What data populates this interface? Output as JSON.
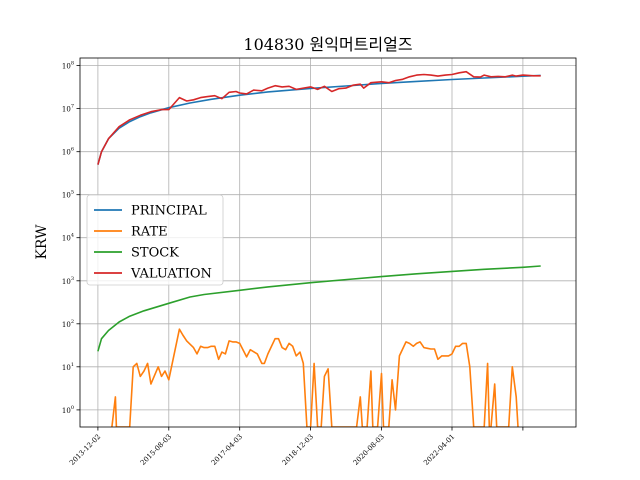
{
  "chart_data": {
    "type": "line",
    "title": "104830 원익머트리얼즈",
    "xlabel": "",
    "ylabel": "KRW",
    "yscale": "log",
    "ylim": [
      0.4,
      150000000
    ],
    "xlim": [
      "2013-07-01",
      "2025-03-01"
    ],
    "grid": true,
    "legend": {
      "position": "center-left"
    },
    "x_ticks": [
      {
        "date": "2013-12-02",
        "label": "2013-12-02"
      },
      {
        "date": "2015-08-03",
        "label": "2015-08-03"
      },
      {
        "date": "2017-04-03",
        "label": "2017-04-03"
      },
      {
        "date": "2018-12-03",
        "label": "2018-12-03"
      },
      {
        "date": "2020-08-03",
        "label": "2020-08-03"
      },
      {
        "date": "2022-04-01",
        "label": "2022-04-01"
      },
      {
        "date": "2023-12-01",
        "label": ""
      }
    ],
    "y_ticks": [
      {
        "value": 1,
        "base": "10",
        "exp": "0"
      },
      {
        "value": 10,
        "base": "10",
        "exp": "1"
      },
      {
        "value": 100,
        "base": "10",
        "exp": "2"
      },
      {
        "value": 1000,
        "base": "10",
        "exp": "3"
      },
      {
        "value": 10000,
        "base": "10",
        "exp": "4"
      },
      {
        "value": 100000,
        "base": "10",
        "exp": "5"
      },
      {
        "value": 1000000,
        "base": "10",
        "exp": "6"
      },
      {
        "value": 10000000,
        "base": "10",
        "exp": "7"
      },
      {
        "value": 100000000,
        "base": "10",
        "exp": "8"
      }
    ],
    "series": [
      {
        "name": "PRINCIPAL",
        "color": "#1f77b4",
        "points": [
          [
            "2013-12-02",
            500000
          ],
          [
            "2014-01-02",
            1000000
          ],
          [
            "2014-03-03",
            2000000
          ],
          [
            "2014-06-02",
            3500000
          ],
          [
            "2014-09-01",
            5000000
          ],
          [
            "2014-12-01",
            6500000
          ],
          [
            "2015-03-02",
            8000000
          ],
          [
            "2015-08-03",
            10500000
          ],
          [
            "2016-02-01",
            13500000
          ],
          [
            "2016-08-01",
            16500000
          ],
          [
            "2017-04-03",
            20500000
          ],
          [
            "2017-12-01",
            24500000
          ],
          [
            "2018-12-03",
            29500000
          ],
          [
            "2019-12-02",
            34500000
          ],
          [
            "2020-08-03",
            38500000
          ],
          [
            "2021-06-01",
            43000000
          ],
          [
            "2022-04-01",
            47500000
          ],
          [
            "2023-01-02",
            51500000
          ],
          [
            "2023-12-01",
            56500000
          ],
          [
            "2024-05-02",
            59000000
          ]
        ]
      },
      {
        "name": "RATE",
        "color": "#ff7f0e",
        "points": [
          [
            "2014-04-01",
            0.3
          ],
          [
            "2014-05-01",
            2
          ],
          [
            "2014-05-10",
            0.3
          ],
          [
            "2014-09-01",
            0.3
          ],
          [
            "2014-10-01",
            10
          ],
          [
            "2014-11-01",
            12
          ],
          [
            "2014-12-01",
            6
          ],
          [
            "2015-01-02",
            8
          ],
          [
            "2015-02-02",
            12
          ],
          [
            "2015-03-02",
            4
          ],
          [
            "2015-05-04",
            10
          ],
          [
            "2015-06-01",
            6
          ],
          [
            "2015-07-01",
            8
          ],
          [
            "2015-08-03",
            5
          ],
          [
            "2015-11-02",
            75
          ],
          [
            "2015-12-01",
            55
          ],
          [
            "2016-01-04",
            40
          ],
          [
            "2016-03-02",
            28
          ],
          [
            "2016-04-01",
            20
          ],
          [
            "2016-05-02",
            30
          ],
          [
            "2016-06-01",
            28
          ],
          [
            "2016-07-01",
            28
          ],
          [
            "2016-08-01",
            30
          ],
          [
            "2016-09-01",
            30
          ],
          [
            "2016-10-04",
            15
          ],
          [
            "2016-11-01",
            22
          ],
          [
            "2016-12-01",
            20
          ],
          [
            "2017-01-02",
            40
          ],
          [
            "2017-02-01",
            38
          ],
          [
            "2017-03-02",
            38
          ],
          [
            "2017-04-03",
            35
          ],
          [
            "2017-06-01",
            17
          ],
          [
            "2017-07-03",
            25
          ],
          [
            "2017-09-01",
            20
          ],
          [
            "2017-10-10",
            12
          ],
          [
            "2017-11-01",
            12
          ],
          [
            "2017-12-01",
            20
          ],
          [
            "2018-02-01",
            45
          ],
          [
            "2018-03-02",
            45
          ],
          [
            "2018-04-02",
            28
          ],
          [
            "2018-05-02",
            25
          ],
          [
            "2018-06-01",
            35
          ],
          [
            "2018-07-02",
            30
          ],
          [
            "2018-08-01",
            18
          ],
          [
            "2018-09-03",
            22
          ],
          [
            "2018-10-01",
            12
          ],
          [
            "2018-11-01",
            0.3
          ],
          [
            "2018-12-03",
            0.3
          ],
          [
            "2019-01-02",
            12
          ],
          [
            "2019-02-01",
            0.3
          ],
          [
            "2019-03-04",
            0.3
          ],
          [
            "2019-04-01",
            6
          ],
          [
            "2019-05-02",
            9
          ],
          [
            "2019-06-03",
            0.3
          ],
          [
            "2020-01-02",
            0.3
          ],
          [
            "2020-02-03",
            2
          ],
          [
            "2020-02-20",
            0.3
          ],
          [
            "2020-04-01",
            0.3
          ],
          [
            "2020-05-04",
            8
          ],
          [
            "2020-05-20",
            0.3
          ],
          [
            "2020-07-01",
            0.3
          ],
          [
            "2020-08-03",
            7
          ],
          [
            "2020-08-20",
            0.3
          ],
          [
            "2020-10-05",
            0.3
          ],
          [
            "2020-11-02",
            5
          ],
          [
            "2020-12-01",
            1
          ],
          [
            "2021-01-04",
            18
          ],
          [
            "2021-03-02",
            38
          ],
          [
            "2021-04-01",
            35
          ],
          [
            "2021-05-03",
            30
          ],
          [
            "2021-06-01",
            35
          ],
          [
            "2021-07-01",
            38
          ],
          [
            "2021-08-02",
            28
          ],
          [
            "2021-09-01",
            27
          ],
          [
            "2021-10-01",
            26
          ],
          [
            "2021-11-01",
            26
          ],
          [
            "2021-12-01",
            15
          ],
          [
            "2022-01-03",
            18
          ],
          [
            "2022-03-02",
            18
          ],
          [
            "2022-04-01",
            20
          ],
          [
            "2022-05-02",
            30
          ],
          [
            "2022-06-02",
            30
          ],
          [
            "2022-07-01",
            35
          ],
          [
            "2022-08-01",
            35
          ],
          [
            "2022-09-01",
            10
          ],
          [
            "2022-10-04",
            0.3
          ],
          [
            "2022-11-01",
            0.3
          ],
          [
            "2022-12-01",
            0.3
          ],
          [
            "2023-01-02",
            0.3
          ],
          [
            "2023-02-01",
            12
          ],
          [
            "2023-02-15",
            0.3
          ],
          [
            "2023-03-02",
            0.3
          ],
          [
            "2023-04-03",
            4
          ],
          [
            "2023-04-20",
            0.3
          ],
          [
            "2023-08-01",
            0.3
          ],
          [
            "2023-09-01",
            10
          ],
          [
            "2023-10-04",
            2
          ],
          [
            "2023-10-20",
            0.3
          ]
        ]
      },
      {
        "name": "STOCK",
        "color": "#2ca02c",
        "points": [
          [
            "2013-12-02",
            23
          ],
          [
            "2014-01-02",
            45
          ],
          [
            "2014-03-03",
            70
          ],
          [
            "2014-06-02",
            110
          ],
          [
            "2014-09-01",
            150
          ],
          [
            "2015-01-02",
            200
          ],
          [
            "2015-08-03",
            300
          ],
          [
            "2016-02-01",
            420
          ],
          [
            "2016-06-01",
            480
          ],
          [
            "2017-04-03",
            600
          ],
          [
            "2017-12-01",
            720
          ],
          [
            "2018-12-03",
            900
          ],
          [
            "2019-12-02",
            1100
          ],
          [
            "2020-08-03",
            1250
          ],
          [
            "2021-06-01",
            1450
          ],
          [
            "2022-04-01",
            1650
          ],
          [
            "2023-01-02",
            1850
          ],
          [
            "2023-12-01",
            2050
          ],
          [
            "2024-05-02",
            2200
          ]
        ]
      },
      {
        "name": "VALUATION",
        "color": "#d62728",
        "points": [
          [
            "2013-12-02",
            500000
          ],
          [
            "2014-01-02",
            1000000
          ],
          [
            "2014-03-03",
            2000000
          ],
          [
            "2014-06-02",
            3800000
          ],
          [
            "2014-09-01",
            5500000
          ],
          [
            "2014-12-01",
            7000000
          ],
          [
            "2015-03-02",
            8500000
          ],
          [
            "2015-06-01",
            9500000
          ],
          [
            "2015-08-03",
            9500000
          ],
          [
            "2015-11-02",
            18000000
          ],
          [
            "2016-01-04",
            15000000
          ],
          [
            "2016-03-02",
            16000000
          ],
          [
            "2016-05-02",
            18000000
          ],
          [
            "2016-07-01",
            19000000
          ],
          [
            "2016-09-01",
            20000000
          ],
          [
            "2016-11-01",
            17000000
          ],
          [
            "2017-01-02",
            24000000
          ],
          [
            "2017-03-02",
            25000000
          ],
          [
            "2017-04-03",
            23000000
          ],
          [
            "2017-06-01",
            22000000
          ],
          [
            "2017-08-01",
            27000000
          ],
          [
            "2017-10-10",
            26000000
          ],
          [
            "2017-12-01",
            30000000
          ],
          [
            "2018-02-01",
            34000000
          ],
          [
            "2018-04-02",
            32000000
          ],
          [
            "2018-06-01",
            33000000
          ],
          [
            "2018-08-01",
            28000000
          ],
          [
            "2018-10-01",
            30000000
          ],
          [
            "2018-12-03",
            32000000
          ],
          [
            "2019-02-01",
            28000000
          ],
          [
            "2019-04-01",
            33000000
          ],
          [
            "2019-06-03",
            25000000
          ],
          [
            "2019-08-01",
            29000000
          ],
          [
            "2019-10-01",
            30000000
          ],
          [
            "2019-12-02",
            35000000
          ],
          [
            "2020-02-03",
            37000000
          ],
          [
            "2020-03-03",
            30000000
          ],
          [
            "2020-05-04",
            40000000
          ],
          [
            "2020-08-03",
            42000000
          ],
          [
            "2020-10-05",
            40000000
          ],
          [
            "2020-12-01",
            45000000
          ],
          [
            "2021-02-01",
            48000000
          ],
          [
            "2021-04-01",
            55000000
          ],
          [
            "2021-06-01",
            60000000
          ],
          [
            "2021-08-02",
            62000000
          ],
          [
            "2021-10-01",
            60000000
          ],
          [
            "2021-12-01",
            57000000
          ],
          [
            "2022-02-03",
            60000000
          ],
          [
            "2022-04-01",
            62000000
          ],
          [
            "2022-06-02",
            68000000
          ],
          [
            "2022-08-01",
            72000000
          ],
          [
            "2022-10-04",
            55000000
          ],
          [
            "2022-12-01",
            54000000
          ],
          [
            "2023-01-02",
            60000000
          ],
          [
            "2023-03-02",
            55000000
          ],
          [
            "2023-05-02",
            56000000
          ],
          [
            "2023-07-03",
            55000000
          ],
          [
            "2023-09-01",
            60000000
          ],
          [
            "2023-10-04",
            57000000
          ],
          [
            "2023-12-01",
            60000000
          ],
          [
            "2024-03-04",
            58000000
          ],
          [
            "2024-05-02",
            58000000
          ]
        ]
      }
    ]
  }
}
